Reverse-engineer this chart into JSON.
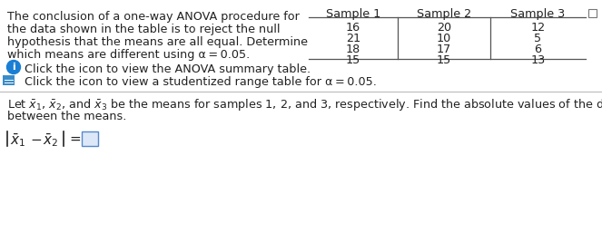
{
  "bg_color": "#ffffff",
  "text_color": "#1a1a1a",
  "dark_color": "#222222",
  "left_text_lines": [
    "The conclusion of a one-way ANOVA procedure for",
    "the data shown in the table is to reject the null",
    "hypothesis that the means are all equal. Determine",
    "which means are different using α = 0.05."
  ],
  "table_headers": [
    "Sample 1",
    "Sample 2",
    "Sample 3"
  ],
  "table_data": [
    [
      16,
      20,
      12
    ],
    [
      21,
      10,
      5
    ],
    [
      18,
      17,
      6
    ],
    [
      15,
      15,
      13
    ]
  ],
  "icon1_color": "#1a7fd4",
  "icon2_color": "#3a8cc9",
  "click_text1": "Click the icon to view the ANOVA summary table.",
  "click_text2": "Click the icon to view a studentized range table for α = 0.05.",
  "bottom_text1": "Let $\\bar{x}_1$, $\\bar{x}_2$, and $\\bar{x}_3$ be the means for samples 1, 2, and 3, respectively. Find the absolute values of the differences",
  "bottom_text2": "between the means.",
  "main_font_size": 9.2,
  "table_font_size": 9.2,
  "formula_font_size": 11.0
}
